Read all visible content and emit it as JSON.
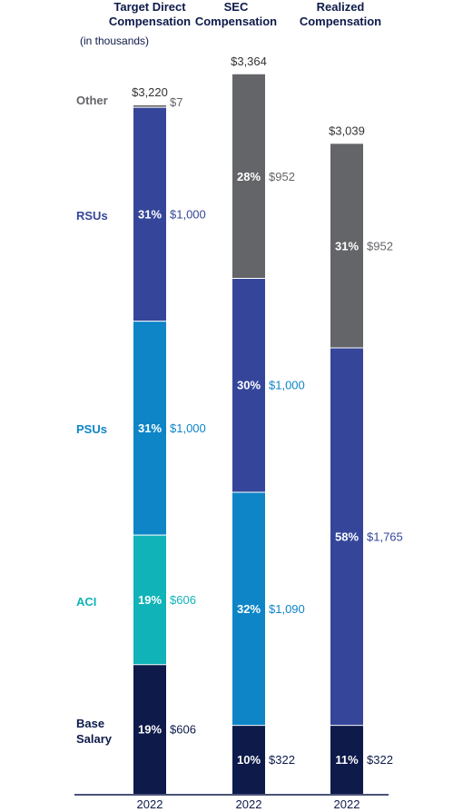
{
  "headers": [
    "Target Direct\nCompensation",
    "SEC\nCompensation",
    "Realized\nCompensation"
  ],
  "units_note": "(in thousands)",
  "category_labels": [
    {
      "text": "Other",
      "color": "#646569"
    },
    {
      "text": "RSUs",
      "color": "#35469a"
    },
    {
      "text": "PSUs",
      "color": "#0d85c7"
    },
    {
      "text": "ACI",
      "color": "#10b3b8"
    },
    {
      "text": "Base\nSalary",
      "color": "#0d1a4a"
    }
  ],
  "chart_data": {
    "type": "bar",
    "stacked": true,
    "categories": [
      "2022",
      "2022",
      "2022"
    ],
    "bars": [
      {
        "total": "$3,220",
        "segments": [
          {
            "component": "Base Salary",
            "value": 606,
            "label": "$606",
            "pct": "19%",
            "color": "#0d1a4a",
            "value_color": "#0d1a4a"
          },
          {
            "component": "ACI",
            "value": 606,
            "label": "$606",
            "pct": "19%",
            "color": "#10b3b8",
            "value_color": "#10b3b8"
          },
          {
            "component": "PSUs",
            "value": 1000,
            "label": "$1,000",
            "pct": "31%",
            "color": "#0d85c7",
            "value_color": "#0d85c7"
          },
          {
            "component": "RSUs",
            "value": 1000,
            "label": "$1,000",
            "pct": "31%",
            "color": "#35469a",
            "value_color": "#35469a"
          },
          {
            "component": "Other",
            "value": 7,
            "label": "$7",
            "pct": "",
            "color": "#646569",
            "value_color": "#646569"
          }
        ]
      },
      {
        "total": "$3,364",
        "segments": [
          {
            "component": "Base Salary",
            "value": 322,
            "label": "$322",
            "pct": "10%",
            "color": "#0d1a4a",
            "value_color": "#0d1a4a"
          },
          {
            "component": "PSUs",
            "value": 1090,
            "label": "$1,090",
            "pct": "32%",
            "color": "#0d85c7",
            "value_color": "#0d85c7"
          },
          {
            "component": "RSUs",
            "value": 1000,
            "label": "$1,000",
            "pct": "30%",
            "color": "#35469a",
            "value_color": "#0d85c7"
          },
          {
            "component": "Other",
            "value": 952,
            "label": "$952",
            "pct": "28%",
            "color": "#646569",
            "value_color": "#646569"
          }
        ]
      },
      {
        "total": "$3,039",
        "segments": [
          {
            "component": "Base Salary",
            "value": 322,
            "label": "$322",
            "pct": "11%",
            "color": "#0d1a4a",
            "value_color": "#0d1a4a"
          },
          {
            "component": "RSUs",
            "value": 1765,
            "label": "$1,765",
            "pct": "58%",
            "color": "#35469a",
            "value_color": "#35469a"
          },
          {
            "component": "Other",
            "value": 952,
            "label": "$952",
            "pct": "31%",
            "color": "#646569",
            "value_color": "#646569"
          }
        ]
      }
    ],
    "ylim": [
      0,
      3364
    ],
    "legend": "left-side labels",
    "grid": false
  }
}
